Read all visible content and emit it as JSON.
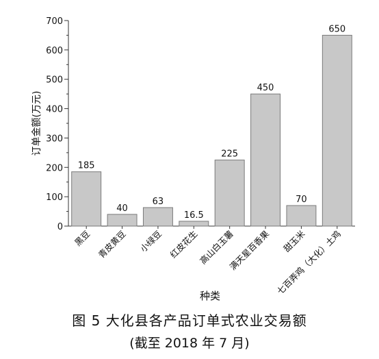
{
  "chart_data": {
    "type": "bar",
    "title": "",
    "xlabel": "种类",
    "ylabel": "订单金额(万元)",
    "ylim": [
      0,
      700
    ],
    "yticks": [
      0,
      100,
      200,
      300,
      400,
      500,
      600,
      700
    ],
    "categories": [
      "黑豆",
      "青皮黄豆",
      "小绿豆",
      "红皮花生",
      "高山白玉薯",
      "满天星百香果",
      "甜玉米",
      "七百弄鸡（大化）土鸡"
    ],
    "values": [
      185,
      40,
      63,
      16.5,
      225,
      450,
      70,
      650
    ],
    "value_labels": [
      "185",
      "40",
      "63",
      "16.5",
      "225",
      "450",
      "70",
      "650"
    ],
    "grid": false,
    "bar_color": "#c8c8c8",
    "bar_edge_color": "#7a7a7a"
  },
  "caption": {
    "line1": "图 5   大化县各产品订单式农业交易额",
    "line2": "(截至 2018 年 7 月)"
  }
}
